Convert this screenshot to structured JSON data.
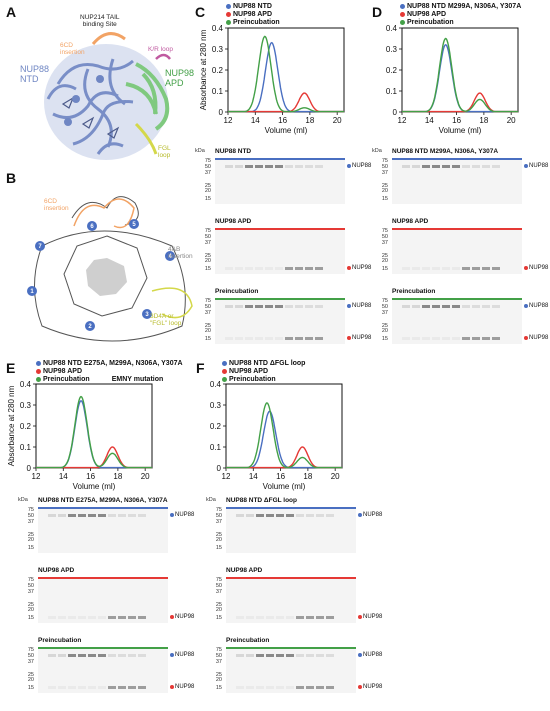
{
  "colors": {
    "ntd": "#4a6fc1",
    "apd": "#e53935",
    "pre": "#43a047",
    "struct_ntd": "#6f86c3",
    "struct_apd": "#7fc97f",
    "orange": "#f2a365",
    "yellow": "#d4d84a",
    "magenta": "#c05aa0"
  },
  "panels": {
    "A": {
      "letter": "A",
      "labels": {
        "tail": "NUP214 TAIL\nbinding Site",
        "sixcd": "6CD\ninsertion",
        "kr": "K/R loop",
        "ntd": "NUP88\nNTD",
        "apd": "NUP98\nAPD",
        "fgl": "FGL\nloop"
      }
    },
    "B": {
      "letter": "B",
      "labels": {
        "sixcd": "6CD\ninsertion",
        "fourab": "4AB\ninsertion",
        "fgl": "3D4A or\n\"FGL\" loop",
        "blade_nums": [
          "1",
          "2",
          "3",
          "4",
          "5",
          "6",
          "7"
        ]
      }
    },
    "C": {
      "letter": "C",
      "legend": [
        "NUP88 NTD",
        "NUP98 APD",
        "Preincubation"
      ],
      "chart": {
        "xlabel": "Volume (ml)",
        "ylabel": "Absorbance at 280 nm",
        "xticks": [
          "12",
          "14",
          "16",
          "18",
          "20"
        ],
        "yticks": [
          "0",
          "0.1",
          "0.2",
          "0.3",
          "0.4"
        ]
      },
      "gels": [
        {
          "title": "NUP88 NTD",
          "bands": [
            "NUP88"
          ]
        },
        {
          "title": "NUP98 APD",
          "bands": [
            "NUP98"
          ]
        },
        {
          "title": "Preincubation",
          "bands": [
            "NUP88",
            "NUP98"
          ]
        }
      ]
    },
    "D": {
      "letter": "D",
      "legend": [
        "NUP88 NTD M299A, N306A, Y307A",
        "NUP98 APD",
        "Preincubation"
      ],
      "chart": {
        "xlabel": "Volume (ml)",
        "xticks": [
          "12",
          "14",
          "16",
          "18",
          "20"
        ],
        "yticks": [
          "0",
          "0.1",
          "0.2",
          "0.3",
          "0.4"
        ]
      },
      "gels": [
        {
          "title": "NUP88 NTD M299A, N306A, Y307A",
          "bands": [
            "NUP88"
          ]
        },
        {
          "title": "NUP98 APD",
          "bands": [
            "NUP98"
          ]
        },
        {
          "title": "Preincubation",
          "bands": [
            "NUP88",
            "NUP98"
          ]
        }
      ]
    },
    "E": {
      "letter": "E",
      "legend": [
        "NUP88 NTD E275A, M299A, N306A, Y307A",
        "NUP98 APD",
        "Preincubation"
      ],
      "note": "EMNY mutation",
      "chart": {
        "xlabel": "Volume (ml)",
        "ylabel": "Absorbance at 280 nm",
        "xticks": [
          "12",
          "14",
          "16",
          "18",
          "20"
        ],
        "yticks": [
          "0",
          "0.1",
          "0.2",
          "0.3",
          "0.4"
        ]
      },
      "gels": [
        {
          "title": "NUP88 NTD E275A, M299A, N306A, Y307A",
          "bands": [
            "NUP88"
          ]
        },
        {
          "title": "NUP98 APD",
          "bands": [
            "NUP98"
          ]
        },
        {
          "title": "Preincubation",
          "bands": [
            "NUP88",
            "NUP98"
          ]
        }
      ]
    },
    "F": {
      "letter": "F",
      "legend": [
        "NUP88 NTD ΔFGL loop",
        "NUP98 APD",
        "Preincubation"
      ],
      "chart": {
        "xlabel": "Volume (ml)",
        "xticks": [
          "12",
          "14",
          "16",
          "18",
          "20"
        ],
        "yticks": [
          "0",
          "0.1",
          "0.2",
          "0.3",
          "0.4"
        ]
      },
      "gels": [
        {
          "title": "NUP88 NTD ΔFGL loop",
          "bands": [
            "NUP88"
          ]
        },
        {
          "title": "NUP98 APD",
          "bands": [
            "NUP98"
          ]
        },
        {
          "title": "Preincubation",
          "bands": [
            "NUP88",
            "NUP98"
          ]
        }
      ]
    }
  },
  "gel_common": {
    "kda": "kDa",
    "mw_markers": [
      "75",
      "50",
      "37",
      "25",
      "20",
      "15"
    ]
  },
  "chart_data": [
    {
      "panel": "C",
      "type": "line",
      "xlabel": "Volume (ml)",
      "ylabel": "Absorbance at 280 nm",
      "xlim": [
        12,
        20.5
      ],
      "ylim": [
        0,
        0.4
      ],
      "series": [
        {
          "name": "NUP88 NTD",
          "color": "#4a6fc1",
          "peaks": [
            {
              "x": 15.2,
              "h": 0.33,
              "w": 0.45
            }
          ]
        },
        {
          "name": "NUP98 APD",
          "color": "#e53935",
          "peaks": [
            {
              "x": 17.6,
              "h": 0.09,
              "w": 0.4
            }
          ]
        },
        {
          "name": "Preincubation",
          "color": "#43a047",
          "peaks": [
            {
              "x": 14.7,
              "h": 0.36,
              "w": 0.45
            },
            {
              "x": 17.6,
              "h": 0.02,
              "w": 0.4
            }
          ]
        }
      ]
    },
    {
      "panel": "D",
      "type": "line",
      "xlabel": "Volume (ml)",
      "ylabel": "",
      "xlim": [
        12,
        20.5
      ],
      "ylim": [
        0,
        0.4
      ],
      "series": [
        {
          "name": "NUP88 NTD M299A, N306A, Y307A",
          "color": "#4a6fc1",
          "peaks": [
            {
              "x": 15.2,
              "h": 0.32,
              "w": 0.45
            }
          ]
        },
        {
          "name": "NUP98 APD",
          "color": "#e53935",
          "peaks": [
            {
              "x": 17.7,
              "h": 0.09,
              "w": 0.4
            }
          ]
        },
        {
          "name": "Preincubation",
          "color": "#43a047",
          "peaks": [
            {
              "x": 15.2,
              "h": 0.35,
              "w": 0.45
            },
            {
              "x": 17.7,
              "h": 0.06,
              "w": 0.4
            }
          ]
        }
      ]
    },
    {
      "panel": "E",
      "type": "line",
      "xlabel": "Volume (ml)",
      "ylabel": "Absorbance at 280 nm",
      "xlim": [
        12,
        20.5
      ],
      "ylim": [
        0,
        0.4
      ],
      "series": [
        {
          "name": "NUP88 NTD E275A, M299A, N306A, Y307A",
          "color": "#4a6fc1",
          "peaks": [
            {
              "x": 15.3,
              "h": 0.32,
              "w": 0.45
            }
          ]
        },
        {
          "name": "NUP98 APD",
          "color": "#e53935",
          "peaks": [
            {
              "x": 17.6,
              "h": 0.1,
              "w": 0.4
            }
          ]
        },
        {
          "name": "Preincubation",
          "color": "#43a047",
          "peaks": [
            {
              "x": 15.3,
              "h": 0.34,
              "w": 0.45
            },
            {
              "x": 17.6,
              "h": 0.07,
              "w": 0.4
            }
          ]
        }
      ]
    },
    {
      "panel": "F",
      "type": "line",
      "xlabel": "Volume (ml)",
      "ylabel": "",
      "xlim": [
        12,
        20.5
      ],
      "ylim": [
        0,
        0.4
      ],
      "series": [
        {
          "name": "NUP88 NTD ΔFGL loop",
          "color": "#4a6fc1",
          "peaks": [
            {
              "x": 15.2,
              "h": 0.27,
              "w": 0.45
            }
          ]
        },
        {
          "name": "NUP98 APD",
          "color": "#e53935",
          "peaks": [
            {
              "x": 17.6,
              "h": 0.1,
              "w": 0.4
            }
          ]
        },
        {
          "name": "Preincubation",
          "color": "#43a047",
          "peaks": [
            {
              "x": 15.0,
              "h": 0.31,
              "w": 0.45
            },
            {
              "x": 17.6,
              "h": 0.05,
              "w": 0.4
            }
          ]
        }
      ]
    }
  ]
}
